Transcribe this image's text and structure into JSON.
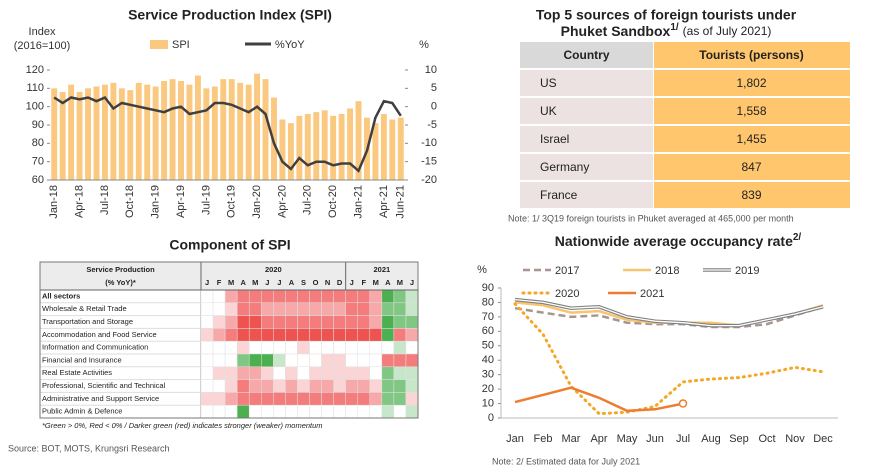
{
  "chart_data": [
    {
      "type": "bar_line",
      "title": "Service Production Index (SPI)",
      "ylabel": [
        "Index",
        "(2016=100)"
      ],
      "y2label": "%",
      "categories": [
        "Jan-18",
        null,
        null,
        "Apr-18",
        null,
        null,
        "Jul-18",
        null,
        null,
        "Oct-18",
        null,
        null,
        "Jan-19",
        null,
        null,
        "Apr-19",
        null,
        null,
        "Jul-19",
        null,
        null,
        "Oct-19",
        null,
        null,
        "Jan-20",
        null,
        null,
        "Apr-20",
        null,
        null,
        "Jul-20",
        null,
        null,
        "Oct-20",
        null,
        null,
        "Jan-21",
        null,
        null,
        "Apr-21",
        null,
        "Jun-21"
      ],
      "series": [
        {
          "name": "SPI",
          "kind": "bar",
          "color": "#fac87f",
          "values": [
            110,
            108,
            112,
            108,
            110,
            111,
            112,
            113,
            110,
            109,
            113,
            112,
            111,
            114,
            115,
            114,
            112,
            117,
            110,
            111,
            115,
            115,
            113,
            112,
            118,
            115,
            105,
            93,
            91,
            95,
            96,
            97,
            98,
            95,
            96,
            99,
            103,
            94,
            91,
            96,
            93,
            94
          ]
        },
        {
          "name": "%YoY",
          "kind": "line",
          "color": "#404040",
          "axis": "y2",
          "values": [
            2.5,
            1,
            2.5,
            2,
            2.5,
            1.5,
            2.5,
            -0.5,
            1,
            0.5,
            0,
            -0.5,
            -1,
            -1.5,
            -0.5,
            0,
            -2,
            -1.5,
            -1,
            1,
            1,
            0.5,
            -0.5,
            -1.5,
            0,
            -2,
            -10,
            -15,
            -17,
            -14,
            -16,
            -15,
            -15,
            -16,
            -15.5,
            -15.5,
            -17.5,
            -12,
            -3,
            1.5,
            1,
            -2.5
          ]
        }
      ],
      "ylim": [
        60,
        120
      ],
      "yticks": [
        60,
        70,
        80,
        90,
        100,
        110,
        120
      ],
      "y2lim": [
        -20,
        10
      ],
      "y2ticks": [
        -20,
        -15,
        -10,
        -5,
        0,
        5,
        10
      ]
    },
    {
      "type": "line",
      "title": "Nationwide average occupancy rate",
      "title_sup": "2/",
      "ylabel": "%",
      "categories": [
        "Jan",
        "Feb",
        "Mar",
        "Apr",
        "May",
        "Jun",
        "Jul",
        "Aug",
        "Sep",
        "Oct",
        "Nov",
        "Dec"
      ],
      "series": [
        {
          "name": "2017",
          "color": "#a8958f",
          "style": "dashed",
          "values": [
            76,
            73,
            70,
            71,
            66,
            65,
            65,
            63,
            63,
            65,
            71,
            77
          ]
        },
        {
          "name": "2018",
          "color": "#f6c56e",
          "style": "solid",
          "values": [
            80,
            78,
            73,
            74,
            68,
            66,
            66,
            66,
            64,
            68,
            72,
            78
          ]
        },
        {
          "name": "2019",
          "color": "#7f7f7f",
          "style": "double",
          "values": [
            82,
            80,
            76,
            77,
            70,
            67,
            66,
            64,
            64,
            68,
            72,
            77
          ]
        },
        {
          "name": "2020",
          "color": "#f5a623",
          "style": "dotted",
          "values": [
            79,
            58,
            22,
            3,
            4,
            8,
            25,
            27,
            28,
            31,
            35,
            32
          ]
        },
        {
          "name": "2021",
          "color": "#ed7d31",
          "style": "solid",
          "end_marker": "open-circle",
          "values": [
            11,
            16,
            21,
            14,
            5,
            6,
            10,
            null,
            null,
            null,
            null,
            null
          ]
        }
      ],
      "ylim": [
        0,
        90
      ],
      "yticks": [
        0,
        10,
        20,
        30,
        40,
        50,
        60,
        70,
        80,
        90
      ],
      "note": "Note: 2/ Estimated data for July 2021"
    }
  ],
  "tourists_table": {
    "title_line1": "Top 5 sources of  foreign tourists under",
    "title_line2": "Phuket Sandbox",
    "title_sup": "1/",
    "title_note": "(as of July 2021)",
    "columns": [
      "Country",
      "Tourists (persons)"
    ],
    "rows": [
      [
        "US",
        "1,802"
      ],
      [
        "UK",
        "1,558"
      ],
      [
        "Israel",
        "1,455"
      ],
      [
        "Germany",
        "847"
      ],
      [
        "France",
        "839"
      ]
    ],
    "note": "Note: 1/ 3Q19 foreign tourists in Phuket averaged at 465,000 per month"
  },
  "spi_components": {
    "title": "Component of SPI",
    "header": [
      "Service Production",
      "(% YoY)*"
    ],
    "years": [
      {
        "label": "2020",
        "months": [
          "J",
          "F",
          "M",
          "A",
          "M",
          "J",
          "J",
          "A",
          "S",
          "O",
          "N",
          "D"
        ]
      },
      {
        "label": "2021",
        "months": [
          "J",
          "F",
          "M",
          "A",
          "M",
          "J"
        ]
      }
    ],
    "rows": [
      {
        "label": "All sectors",
        "colors": [
          "#ffffff",
          "#ffffff",
          "#f7a8a8",
          "#f47c7c",
          "#f47c7c",
          "#f47c7c",
          "#f47c7c",
          "#f47c7c",
          "#f47c7c",
          "#f47c7c",
          "#f47c7c",
          "#f47c7c",
          "#f47c7c",
          "#f47c7c",
          "#f7a8a8",
          "#4caf50",
          "#81c784",
          "#c8e6c9"
        ]
      },
      {
        "label": "Wholesale & Retail Trade",
        "colors": [
          "#ffffff",
          "#ffffff",
          "#fbd5d5",
          "#f47c7c",
          "#f47c7c",
          "#f7a8a8",
          "#f7a8a8",
          "#f7a8a8",
          "#f7a8a8",
          "#f7a8a8",
          "#f7a8a8",
          "#f7a8a8",
          "#f47c7c",
          "#f47c7c",
          "#f7a8a8",
          "#81c784",
          "#81c784",
          "#c8e6c9"
        ]
      },
      {
        "label": "Transportation and Storage",
        "colors": [
          "#ffffff",
          "#fbd5d5",
          "#f7a8a8",
          "#ef5350",
          "#ef5350",
          "#f47c7c",
          "#f47c7c",
          "#f47c7c",
          "#f47c7c",
          "#f47c7c",
          "#f47c7c",
          "#f47c7c",
          "#f47c7c",
          "#f47c7c",
          "#f7a8a8",
          "#4caf50",
          "#81c784",
          "#81c784"
        ]
      },
      {
        "label": "Accommodation and Food Service",
        "colors": [
          "#fbd5d5",
          "#f7a8a8",
          "#f47c7c",
          "#ef5350",
          "#ef5350",
          "#ef5350",
          "#ef5350",
          "#ef5350",
          "#ef5350",
          "#ef5350",
          "#ef5350",
          "#ef5350",
          "#ef5350",
          "#ef5350",
          "#ef5350",
          "#4caf50",
          "#f47c7c",
          "#f7a8a8"
        ]
      },
      {
        "label": "Information and Communication",
        "colors": [
          "#ffffff",
          "#ffffff",
          "#ffffff",
          "#fbd5d5",
          "#ffffff",
          "#ffffff",
          "#ffffff",
          "#ffffff",
          "#fbd5d5",
          "#ffffff",
          "#ffffff",
          "#ffffff",
          "#ffffff",
          "#ffffff",
          "#ffffff",
          "#ffffff",
          "#c8e6c9",
          "#ffffff"
        ]
      },
      {
        "label": "Financial and Insurance",
        "colors": [
          "#ffffff",
          "#ffffff",
          "#ffffff",
          "#81c784",
          "#4caf50",
          "#4caf50",
          "#c8e6c9",
          "#ffffff",
          "#ffffff",
          "#ffffff",
          "#fbd5d5",
          "#fbd5d5",
          "#ffffff",
          "#ffffff",
          "#ffffff",
          "#f47c7c",
          "#f47c7c",
          "#f47c7c"
        ]
      },
      {
        "label": "Real Estate Activities",
        "colors": [
          "#ffffff",
          "#fbd5d5",
          "#fbd5d5",
          "#f7a8a8",
          "#f7a8a8",
          "#fbd5d5",
          "#ffffff",
          "#fbd5d5",
          "#ffffff",
          "#fbd5d5",
          "#fbd5d5",
          "#fbd5d5",
          "#fbd5d5",
          "#fbd5d5",
          "#ffffff",
          "#81c784",
          "#c8e6c9",
          "#c8e6c9"
        ]
      },
      {
        "label": "Professional, Scientific and Technical",
        "colors": [
          "#ffffff",
          "#ffffff",
          "#fbd5d5",
          "#f47c7c",
          "#f7a8a8",
          "#f7a8a8",
          "#fbd5d5",
          "#f7a8a8",
          "#fbd5d5",
          "#f7a8a8",
          "#f7a8a8",
          "#fbd5d5",
          "#f7a8a8",
          "#f7a8a8",
          "#fbd5d5",
          "#81c784",
          "#81c784",
          "#c8e6c9"
        ]
      },
      {
        "label": "Administrative and Support Service",
        "colors": [
          "#fbd5d5",
          "#fbd5d5",
          "#f7a8a8",
          "#f47c7c",
          "#f47c7c",
          "#f47c7c",
          "#f47c7c",
          "#f47c7c",
          "#f47c7c",
          "#f47c7c",
          "#f47c7c",
          "#f47c7c",
          "#f47c7c",
          "#f47c7c",
          "#f7a8a8",
          "#81c784",
          "#81c784",
          "#fbd5d5"
        ]
      },
      {
        "label": "Public Admin & Defence",
        "colors": [
          "#ffffff",
          "#ffffff",
          "#ffffff",
          "#4caf50",
          "#ffffff",
          "#ffffff",
          "#ffffff",
          "#ffffff",
          "#ffffff",
          "#ffffff",
          "#ffffff",
          "#ffffff",
          "#ffffff",
          "#ffffff",
          "#ffffff",
          "#c8e6c9",
          "#ffffff",
          "#c8e6c9"
        ]
      }
    ],
    "footnote": "*Green > 0%, Red < 0% / Darker green (red) indicates stronger (weaker) momentum"
  },
  "source": "Source: BOT, MOTS, Krungsri Research"
}
